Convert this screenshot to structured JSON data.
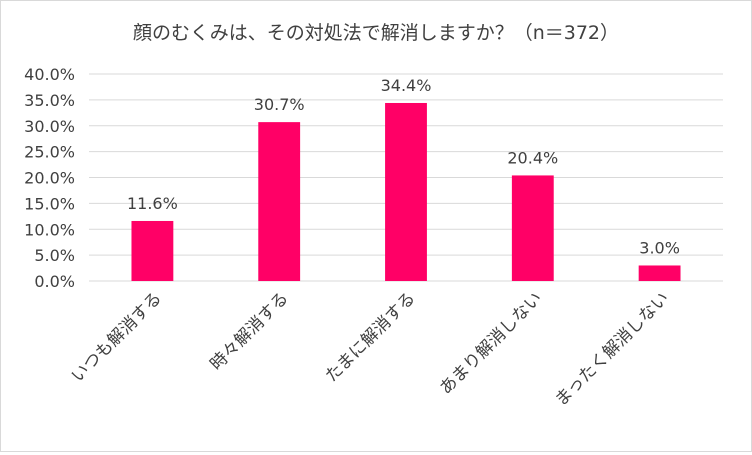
{
  "chart_data": {
    "type": "bar",
    "title": "顔のむくみは、その対処法で解消しますか？（n＝372）",
    "categories": [
      "いつも解消する",
      "時々解消する",
      "たまに解消する",
      "あまり解消しない",
      "まったく解消しない"
    ],
    "values": [
      11.6,
      30.7,
      34.4,
      20.4,
      3.0
    ],
    "value_labels": [
      "11.6%",
      "30.7%",
      "34.4%",
      "20.4%",
      "3.0%"
    ],
    "y_ticks": [
      "0.0%",
      "5.0%",
      "10.0%",
      "15.0%",
      "20.0%",
      "25.0%",
      "30.0%",
      "35.0%",
      "40.0%"
    ],
    "ylim": [
      0,
      40
    ],
    "grid": true,
    "bar_color": "#ff0066",
    "grid_color": "#d9d9d9",
    "text_color": "#404040"
  }
}
